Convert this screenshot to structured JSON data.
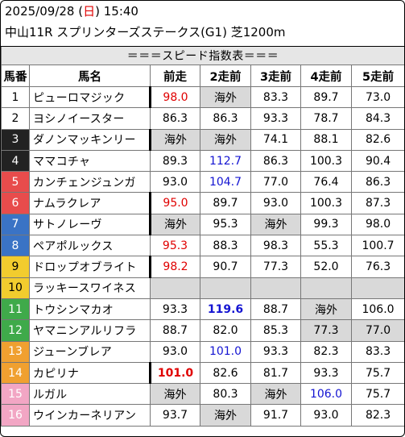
{
  "header": {
    "date": "2025/09/28",
    "day_open": " (",
    "day": "日",
    "day_close": ") ",
    "time": "15:40",
    "race": "中山11R スプリンターズステークス(G1) 芝1200m"
  },
  "table_title": "＝＝＝スピード指数表＝＝＝",
  "columns": [
    "馬番",
    "馬名",
    "前走",
    "2走前",
    "3走前",
    "4走前",
    "5走前"
  ],
  "colors": {
    "red": "#e00000",
    "blue": "#1414d2",
    "gray_cell": "#d9d9d9"
  },
  "rows": [
    {
      "no": "1",
      "name": "ピューロマジック",
      "badge": "#ffffff",
      "fg": "#000000",
      "cells": [
        {
          "v": "98.0",
          "c": "red",
          "bar": true
        },
        {
          "v": "海外",
          "gray": true
        },
        {
          "v": "83.3"
        },
        {
          "v": "89.7"
        },
        {
          "v": "73.0"
        }
      ]
    },
    {
      "no": "2",
      "name": "ヨシノイースター",
      "badge": "#ffffff",
      "fg": "#000000",
      "cells": [
        {
          "v": "86.3"
        },
        {
          "v": "86.3"
        },
        {
          "v": "93.3"
        },
        {
          "v": "78.7"
        },
        {
          "v": "84.3"
        }
      ]
    },
    {
      "no": "3",
      "name": "ダノンマッキンリー",
      "badge": "#222222",
      "fg": "#ffffff",
      "cells": [
        {
          "v": "海外",
          "gray": true,
          "bar": true
        },
        {
          "v": "海外",
          "gray": true
        },
        {
          "v": "74.1"
        },
        {
          "v": "88.1"
        },
        {
          "v": "82.6"
        }
      ]
    },
    {
      "no": "4",
      "name": "ママコチャ",
      "badge": "#222222",
      "fg": "#ffffff",
      "cells": [
        {
          "v": "89.3"
        },
        {
          "v": "112.7",
          "c": "blue"
        },
        {
          "v": "86.3"
        },
        {
          "v": "100.3"
        },
        {
          "v": "90.4"
        }
      ]
    },
    {
      "no": "5",
      "name": "カンチェンジュンガ",
      "badge": "#e84c4c",
      "fg": "#ffffff",
      "cells": [
        {
          "v": "93.0"
        },
        {
          "v": "104.7",
          "c": "blue"
        },
        {
          "v": "77.0"
        },
        {
          "v": "76.4"
        },
        {
          "v": "86.3"
        }
      ]
    },
    {
      "no": "6",
      "name": "ナムラクレア",
      "badge": "#e84c4c",
      "fg": "#ffffff",
      "cells": [
        {
          "v": "95.0",
          "c": "red",
          "bar": true
        },
        {
          "v": "89.7"
        },
        {
          "v": "93.0"
        },
        {
          "v": "100.3"
        },
        {
          "v": "87.3"
        }
      ]
    },
    {
      "no": "7",
      "name": "サトノレーヴ",
      "badge": "#3a73c5",
      "fg": "#ffffff",
      "cells": [
        {
          "v": "海外",
          "gray": true,
          "bar": true
        },
        {
          "v": "95.3"
        },
        {
          "v": "海外",
          "gray": true
        },
        {
          "v": "99.3"
        },
        {
          "v": "98.0"
        }
      ]
    },
    {
      "no": "8",
      "name": "ペアポルックス",
      "badge": "#3a73c5",
      "fg": "#ffffff",
      "cells": [
        {
          "v": "95.3",
          "c": "red"
        },
        {
          "v": "88.3"
        },
        {
          "v": "98.3"
        },
        {
          "v": "55.3"
        },
        {
          "v": "100.7"
        }
      ]
    },
    {
      "no": "9",
      "name": "ドロップオブライト",
      "badge": "#f2cc2e",
      "fg": "#000000",
      "cells": [
        {
          "v": "98.2",
          "c": "red",
          "bar": true
        },
        {
          "v": "90.7"
        },
        {
          "v": "77.3"
        },
        {
          "v": "52.0"
        },
        {
          "v": "76.3"
        }
      ]
    },
    {
      "no": "10",
      "name": "ラッキースワイネス",
      "badge": "#f2cc2e",
      "fg": "#000000",
      "empty": true,
      "cells": [
        {
          "v": ""
        },
        {
          "v": ""
        },
        {
          "v": ""
        },
        {
          "v": ""
        },
        {
          "v": ""
        }
      ]
    },
    {
      "no": "11",
      "name": "トウシンマカオ",
      "badge": "#3faa4a",
      "fg": "#ffffff",
      "cells": [
        {
          "v": "93.3"
        },
        {
          "v": "119.6",
          "c": "blue",
          "bold": true
        },
        {
          "v": "88.7"
        },
        {
          "v": "海外",
          "gray": true
        },
        {
          "v": "106.0"
        }
      ]
    },
    {
      "no": "12",
      "name": "ヤマニンアルリフラ",
      "badge": "#3faa4a",
      "fg": "#ffffff",
      "cells": [
        {
          "v": "88.7"
        },
        {
          "v": "82.0"
        },
        {
          "v": "85.3"
        },
        {
          "v": "77.3",
          "gray": true
        },
        {
          "v": "77.0",
          "gray": true
        }
      ]
    },
    {
      "no": "13",
      "name": "ジューンブレア",
      "badge": "#f0a030",
      "fg": "#ffffff",
      "cells": [
        {
          "v": "93.0"
        },
        {
          "v": "101.0",
          "c": "blue"
        },
        {
          "v": "93.3"
        },
        {
          "v": "82.3"
        },
        {
          "v": "83.3"
        }
      ]
    },
    {
      "no": "14",
      "name": "カピリナ",
      "badge": "#f0a030",
      "fg": "#ffffff",
      "cells": [
        {
          "v": "101.0",
          "c": "red",
          "bold": true,
          "bar": true
        },
        {
          "v": "82.6"
        },
        {
          "v": "81.7"
        },
        {
          "v": "93.3"
        },
        {
          "v": "75.7"
        }
      ]
    },
    {
      "no": "15",
      "name": "ルガル",
      "badge": "#f2a6c4",
      "fg": "#ffffff",
      "cells": [
        {
          "v": "海外",
          "gray": true
        },
        {
          "v": "80.3"
        },
        {
          "v": "海外",
          "gray": true
        },
        {
          "v": "106.0",
          "c": "blue"
        },
        {
          "v": "75.7"
        }
      ]
    },
    {
      "no": "16",
      "name": "ウインカーネリアン",
      "badge": "#f2a6c4",
      "fg": "#ffffff",
      "cells": [
        {
          "v": "93.7"
        },
        {
          "v": "海外",
          "gray": true
        },
        {
          "v": "91.7"
        },
        {
          "v": "93.0"
        },
        {
          "v": "82.3"
        }
      ]
    }
  ]
}
